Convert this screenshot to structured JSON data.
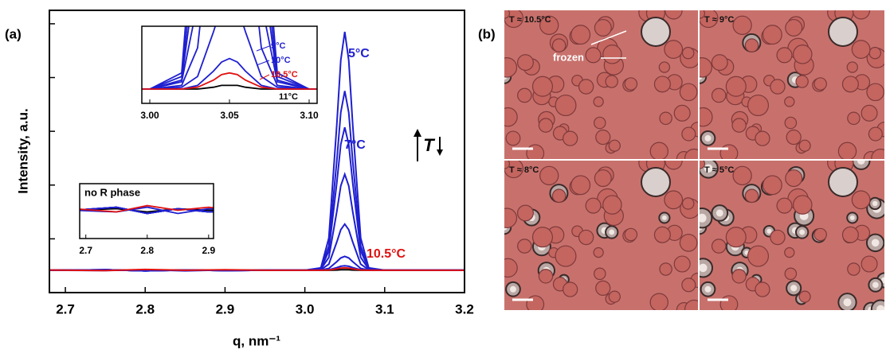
{
  "chart_data": {
    "type": "line",
    "panel_label": "(a)",
    "xlabel": "q, nm⁻¹",
    "ylabel": "Intensity, a.u.",
    "x": [
      2.68,
      2.75,
      2.8,
      2.85,
      2.9,
      2.95,
      3.0,
      3.02,
      3.03,
      3.04,
      3.045,
      3.05,
      3.055,
      3.06,
      3.07,
      3.08,
      3.1,
      3.15,
      3.2
    ],
    "series": [
      {
        "color": "#000000",
        "values": [
          0.83,
          0.84,
          0.82,
          0.84,
          0.83,
          0.83,
          0.83,
          0.83,
          0.83,
          0.84,
          0.85,
          0.85,
          0.85,
          0.84,
          0.83,
          0.83,
          0.83,
          0.83,
          0.83
        ]
      },
      {
        "color": "#1f1fd0",
        "values": [
          0.83,
          0.85,
          0.81,
          0.84,
          0.82,
          0.83,
          0.83,
          0.92,
          2.03,
          6.24,
          8.64,
          9.7,
          8.64,
          6.24,
          2.03,
          0.92,
          0.83,
          0.83,
          0.83
        ]
      },
      {
        "color": "#1f1fd0",
        "values": [
          0.83,
          0.85,
          0.81,
          0.84,
          0.82,
          0.83,
          0.83,
          0.9,
          1.73,
          4.9,
          6.7,
          7.5,
          6.7,
          4.9,
          1.73,
          0.9,
          0.83,
          0.83,
          0.83
        ]
      },
      {
        "color": "#1f1fd0",
        "values": [
          0.83,
          0.85,
          0.81,
          0.84,
          0.82,
          0.83,
          0.83,
          0.88,
          1.55,
          4.08,
          5.51,
          6.15,
          5.51,
          4.08,
          1.55,
          0.88,
          0.83,
          0.83,
          0.83
        ]
      },
      {
        "color": "#1f1fd0",
        "values": [
          0.83,
          0.85,
          0.81,
          0.84,
          0.82,
          0.83,
          0.83,
          0.87,
          1.31,
          3.01,
          3.97,
          4.4,
          3.97,
          3.01,
          1.31,
          0.87,
          0.83,
          0.83,
          0.83
        ]
      },
      {
        "color": "#1f1fd0",
        "values": [
          0.83,
          0.85,
          0.81,
          0.84,
          0.82,
          0.83,
          0.83,
          0.85,
          1.06,
          1.88,
          2.34,
          2.55,
          2.34,
          1.88,
          1.06,
          0.85,
          0.83,
          0.83,
          0.83
        ]
      },
      {
        "color": "#1f1fd0",
        "values": [
          0.83,
          0.85,
          0.81,
          0.84,
          0.82,
          0.83,
          0.83,
          0.84,
          0.9,
          1.15,
          1.29,
          1.35,
          1.29,
          1.15,
          0.9,
          0.84,
          0.83,
          0.83,
          0.83
        ]
      },
      {
        "color": "#1f1fd0",
        "values": [
          0.83,
          0.82,
          0.85,
          0.81,
          0.84,
          0.83,
          0.83,
          0.83,
          0.85,
          0.93,
          0.98,
          1.0,
          0.98,
          0.93,
          0.85,
          0.83,
          0.83,
          0.83,
          0.83
        ]
      },
      {
        "color": "#e01010",
        "values": [
          0.84,
          0.82,
          0.86,
          0.83,
          0.85,
          0.83,
          0.83,
          0.83,
          0.84,
          0.88,
          0.91,
          0.92,
          0.91,
          0.88,
          0.84,
          0.83,
          0.83,
          0.83,
          0.83
        ]
      }
    ],
    "xlim": [
      2.68,
      3.2
    ],
    "ylim": [
      0,
      10.5
    ],
    "xticks": [
      2.7,
      2.8,
      2.9,
      {
        "value": 3.0,
        "label": "3.0"
      },
      3.1,
      3.2
    ],
    "yticks": [
      2,
      4,
      6,
      8,
      10
    ],
    "annotations": [
      {
        "text": "5°C",
        "color": "#1f1fd0"
      },
      {
        "text": "7°C",
        "color": "#1f1fd0"
      },
      {
        "text": "10.5°C",
        "color": "#e01010"
      }
    ],
    "trend_label": "T",
    "insets": [
      {
        "xlim": [
          2.995,
          3.105
        ],
        "ylim": [
          0.75,
          1.18
        ],
        "xticks": [
          {
            "value": 3.0,
            "label": "3.00"
          },
          3.05,
          {
            "value": 3.1,
            "label": "3.10"
          }
        ],
        "labels": [
          {
            "text": "9°C",
            "color": "#1f1fd0"
          },
          {
            "text": "10°C",
            "color": "#1f1fd0"
          },
          {
            "text": "10.5°C",
            "color": "#e01010"
          },
          {
            "text": "11°C",
            "color": "#000000"
          }
        ]
      },
      {
        "title": "no R phase",
        "xlim": [
          2.69,
          2.908
        ],
        "ylim": [
          0.65,
          1.0
        ],
        "xticks": [
          2.7,
          2.8,
          2.9
        ]
      }
    ]
  },
  "micrographs": {
    "panel_label": "(b)",
    "annotation": "frozen",
    "panels": [
      {
        "label": "T ≈ 10.5°C"
      },
      {
        "label": "T ≈ 9°C"
      },
      {
        "label": "T ≈ 8°C"
      },
      {
        "label": "T ≈ 5°C"
      }
    ]
  }
}
